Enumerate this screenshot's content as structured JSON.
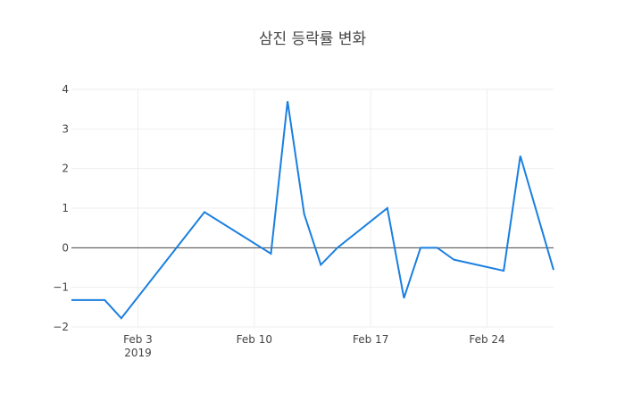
{
  "chart_data": {
    "type": "line",
    "title": "삼진 등락률 변화",
    "xlabel": "",
    "ylabel": "",
    "x_axis": {
      "type": "date",
      "range": [
        "2019-01-30",
        "2019-02-28"
      ],
      "ticks": [
        {
          "date": "2019-02-03",
          "label": "Feb 3",
          "sublabel": "2019"
        },
        {
          "date": "2019-02-10",
          "label": "Feb 10",
          "sublabel": ""
        },
        {
          "date": "2019-02-17",
          "label": "Feb 17",
          "sublabel": ""
        },
        {
          "date": "2019-02-24",
          "label": "Feb 24",
          "sublabel": ""
        }
      ]
    },
    "y_axis": {
      "range": [
        -2,
        4
      ],
      "ticks": [
        {
          "value": 4,
          "label": "4"
        },
        {
          "value": 3,
          "label": "3"
        },
        {
          "value": 2,
          "label": "2"
        },
        {
          "value": 1,
          "label": "1"
        },
        {
          "value": 0,
          "label": "0"
        },
        {
          "value": -1,
          "label": "−1"
        },
        {
          "value": -2,
          "label": "−2"
        }
      ]
    },
    "grid": true,
    "zero_line": true,
    "series": [
      {
        "color": "#1f77b4",
        "line_color": "#1a7fe0",
        "points": [
          {
            "x": "2019-01-30",
            "y": -1.32
          },
          {
            "x": "2019-02-01",
            "y": -1.32
          },
          {
            "x": "2019-02-02",
            "y": -1.78
          },
          {
            "x": "2019-02-07",
            "y": 0.9
          },
          {
            "x": "2019-02-11",
            "y": -0.15
          },
          {
            "x": "2019-02-12",
            "y": 3.7
          },
          {
            "x": "2019-02-13",
            "y": 0.85
          },
          {
            "x": "2019-02-14",
            "y": -0.43
          },
          {
            "x": "2019-02-15",
            "y": 0.0
          },
          {
            "x": "2019-02-18",
            "y": 1.0
          },
          {
            "x": "2019-02-19",
            "y": -1.27
          },
          {
            "x": "2019-02-20",
            "y": 0.0
          },
          {
            "x": "2019-02-21",
            "y": 0.0
          },
          {
            "x": "2019-02-22",
            "y": -0.3
          },
          {
            "x": "2019-02-25",
            "y": -0.58
          },
          {
            "x": "2019-02-26",
            "y": 2.32
          },
          {
            "x": "2019-02-28",
            "y": -0.56
          }
        ]
      }
    ]
  }
}
